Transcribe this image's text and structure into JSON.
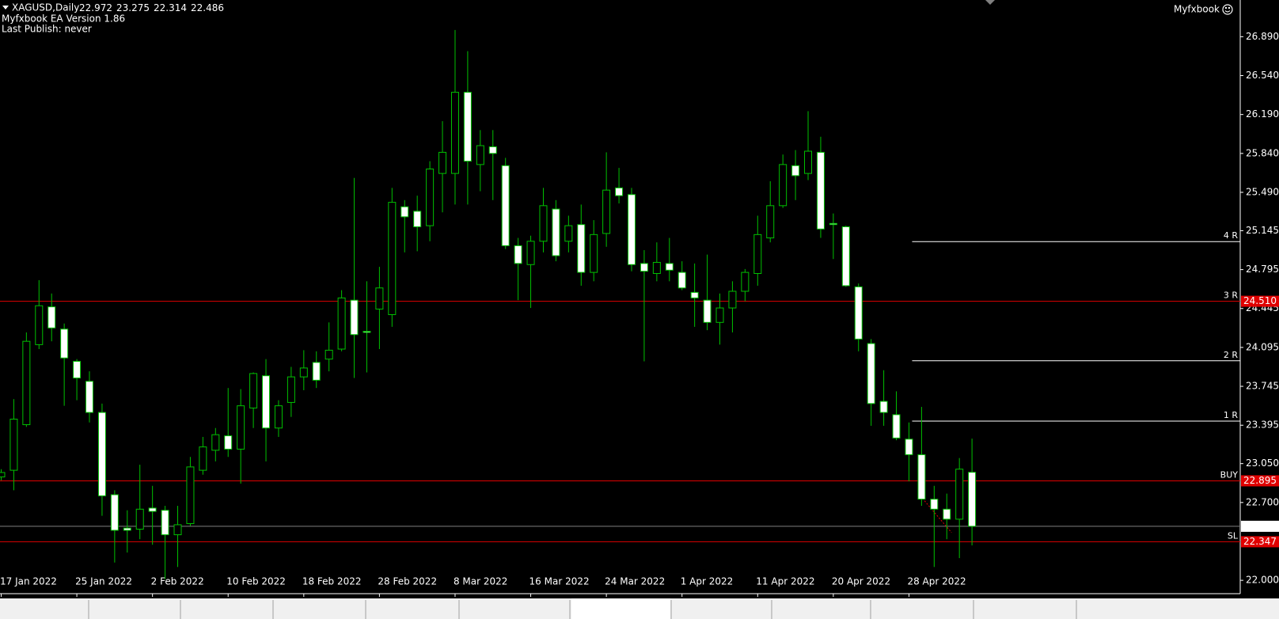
{
  "chart_data": {
    "type": "candlestick",
    "title": "XAGUSD,Daily",
    "annotations": [
      "Myfxbook EA Version 1.86",
      "Last Publish: never"
    ],
    "brand": "Myfxbook",
    "categories": [
      "17 Jan 2022",
      null,
      null,
      null,
      null,
      null,
      "25 Jan 2022",
      null,
      null,
      null,
      null,
      null,
      "2 Feb 2022",
      null,
      null,
      null,
      null,
      null,
      "10 Feb 2022",
      null,
      null,
      null,
      null,
      null,
      "18 Feb 2022",
      null,
      null,
      null,
      null,
      null,
      "28 Feb 2022",
      null,
      null,
      null,
      null,
      null,
      "8 Mar 2022",
      null,
      null,
      null,
      null,
      null,
      "16 Mar 2022",
      null,
      null,
      null,
      null,
      null,
      "24 Mar 2022",
      null,
      null,
      null,
      null,
      null,
      "1 Apr 2022",
      null,
      null,
      null,
      null,
      null,
      "11 Apr 2022",
      null,
      null,
      null,
      null,
      null,
      "20 Apr 2022",
      null,
      null,
      null,
      null,
      null,
      "28 Apr 2022",
      null,
      null,
      null,
      null,
      null
    ],
    "series": [
      {
        "bull_color": "#000000",
        "bear_color": "#ffffff",
        "wick_color": "#00c000",
        "open": [
          22.93,
          22.99,
          23.4,
          24.12,
          24.46,
          24.26,
          23.97,
          23.79,
          23.51,
          22.77,
          22.47,
          22.46,
          22.65,
          22.63,
          22.41,
          22.51,
          22.99,
          23.17,
          23.3,
          23.18,
          23.55,
          23.84,
          23.37,
          23.6,
          23.83,
          23.96,
          23.99,
          24.08,
          24.52,
          24.24,
          24.44,
          24.39,
          25.36,
          25.32,
          25.19,
          25.66,
          25.66,
          26.39,
          25.74,
          25.9,
          25.73,
          25.01,
          24.84,
          25.05,
          25.34,
          25.05,
          25.2,
          24.77,
          25.12,
          25.53,
          25.47,
          24.85,
          24.76,
          24.85,
          24.77,
          24.59,
          24.52,
          24.32,
          24.45,
          24.6,
          24.76,
          25.08,
          25.37,
          25.73,
          25.66,
          25.85,
          25.21,
          25.18,
          24.64,
          24.13,
          23.61,
          23.49,
          23.27,
          23.13,
          22.73,
          22.64,
          22.55,
          22.972
        ],
        "high": [
          23.0,
          23.63,
          24.23,
          24.7,
          24.58,
          24.31,
          23.99,
          23.88,
          23.59,
          22.81,
          22.63,
          23.04,
          22.85,
          22.67,
          22.67,
          23.11,
          23.29,
          23.37,
          23.73,
          23.72,
          23.87,
          23.99,
          23.62,
          23.92,
          24.07,
          24.06,
          24.32,
          24.61,
          25.62,
          24.69,
          24.82,
          25.53,
          25.42,
          25.46,
          25.77,
          26.13,
          26.95,
          26.76,
          26.05,
          26.05,
          25.8,
          25.08,
          25.1,
          25.53,
          25.42,
          25.28,
          25.38,
          25.24,
          25.85,
          25.71,
          25.53,
          24.97,
          25.04,
          25.08,
          24.87,
          24.85,
          24.93,
          24.58,
          24.69,
          24.8,
          25.28,
          25.59,
          25.83,
          25.87,
          26.22,
          25.99,
          25.3,
          25.19,
          24.67,
          24.17,
          23.89,
          23.7,
          23.42,
          23.56,
          22.85,
          22.78,
          23.1,
          23.275
        ],
        "low": [
          22.9,
          22.81,
          23.38,
          24.08,
          24.15,
          23.57,
          23.62,
          23.42,
          22.58,
          22.16,
          22.25,
          22.37,
          22.32,
          22.01,
          22.12,
          22.49,
          22.95,
          23.07,
          23.11,
          22.87,
          23.37,
          23.07,
          23.29,
          23.47,
          23.71,
          23.73,
          23.88,
          24.06,
          23.82,
          23.87,
          24.08,
          24.28,
          24.95,
          24.96,
          25.05,
          25.31,
          25.38,
          25.38,
          25.5,
          25.42,
          24.98,
          24.52,
          24.45,
          24.95,
          24.87,
          24.95,
          24.65,
          24.69,
          25.0,
          25.39,
          24.78,
          23.97,
          24.69,
          24.69,
          24.61,
          24.28,
          24.25,
          24.12,
          24.23,
          24.51,
          24.65,
          25.04,
          25.35,
          25.42,
          25.6,
          25.08,
          24.89,
          24.64,
          24.06,
          23.39,
          23.39,
          23.26,
          22.89,
          22.67,
          22.12,
          22.37,
          22.2,
          22.314
        ],
        "close": [
          22.97,
          23.45,
          24.15,
          24.47,
          24.27,
          24.0,
          23.82,
          23.51,
          22.76,
          22.45,
          22.45,
          22.64,
          22.62,
          22.41,
          22.5,
          23.02,
          23.2,
          23.31,
          23.18,
          23.57,
          23.86,
          23.37,
          23.57,
          23.83,
          23.91,
          23.8,
          24.07,
          24.54,
          24.21,
          24.23,
          24.63,
          25.4,
          25.27,
          25.18,
          25.7,
          25.85,
          26.39,
          25.77,
          25.91,
          25.84,
          25.01,
          24.85,
          25.05,
          25.37,
          24.92,
          25.19,
          24.77,
          25.11,
          25.51,
          25.46,
          24.84,
          24.78,
          24.86,
          24.79,
          24.63,
          24.54,
          24.32,
          24.45,
          24.6,
          24.77,
          25.11,
          25.37,
          25.74,
          25.64,
          25.86,
          25.16,
          25.2,
          24.65,
          24.17,
          23.59,
          23.51,
          23.28,
          23.13,
          22.73,
          22.64,
          22.55,
          23.0,
          22.486
        ]
      }
    ],
    "ylim": [
      21.88,
      27.22
    ],
    "yticks": [
      {
        "value": 26.89,
        "label": "26.890"
      },
      {
        "value": 26.54,
        "label": "26.540"
      },
      {
        "value": 26.19,
        "label": "26.190"
      },
      {
        "value": 25.84,
        "label": "25.840"
      },
      {
        "value": 25.49,
        "label": "25.490"
      },
      25.145,
      24.795,
      24.445,
      24.095,
      23.745,
      23.395,
      {
        "value": 23.05,
        "label": "23.050"
      },
      {
        "value": 22.7,
        "label": "22.700"
      },
      {
        "value": 22.0,
        "label": "22.000"
      }
    ],
    "levels": [
      {
        "name": "4 R",
        "value": 25.047,
        "color": "#ffffff"
      },
      {
        "name": "3 R",
        "value": 24.51,
        "value_label": "24.510",
        "color": "#e00000"
      },
      {
        "name": "2 R",
        "value": 23.975,
        "color": "#ffffff"
      },
      {
        "name": "1 R",
        "value": 23.432,
        "color": "#ffffff"
      },
      {
        "name": "BUY",
        "value": 22.895,
        "color": "#e00000"
      },
      {
        "value": 22.486,
        "color": "#808080"
      },
      {
        "name": "SL",
        "value": 22.347,
        "color": "#e00000"
      }
    ],
    "grid": false
  }
}
